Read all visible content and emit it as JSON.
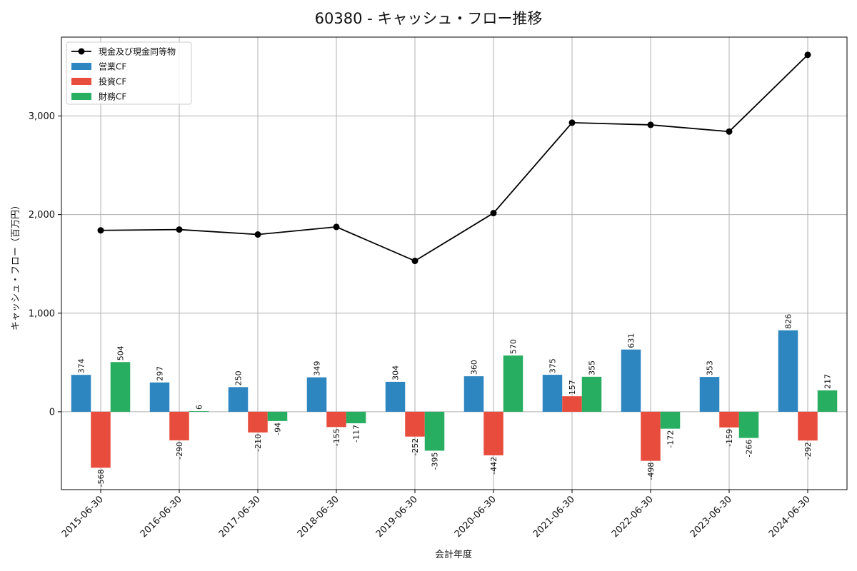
{
  "chart_data": {
    "type": "bar",
    "title": "60380 - キャッシュ・フロー推移",
    "xlabel": "会計年度",
    "ylabel": "キャッシュ・フロー（百万円）",
    "categories": [
      "2015-06-30",
      "2016-06-30",
      "2017-06-30",
      "2018-06-30",
      "2019-06-30",
      "2020-06-30",
      "2021-06-30",
      "2022-06-30",
      "2023-06-30",
      "2024-06-30"
    ],
    "ylim": [
      -790,
      3800
    ],
    "yticks": [
      0,
      1000,
      2000,
      3000
    ],
    "ytick_labels": [
      "0",
      "1,000",
      "2,000",
      "3,000"
    ],
    "grid": true,
    "legend_position": "top-left",
    "series": [
      {
        "name": "営業CF",
        "kind": "bar",
        "color": "#2e86c1",
        "values": [
          374,
          297,
          250,
          349,
          304,
          360,
          375,
          631,
          353,
          826
        ],
        "labels": [
          "374",
          "297",
          "250",
          "349",
          "304",
          "360",
          "375",
          "631",
          "353",
          "826"
        ]
      },
      {
        "name": "投資CF",
        "kind": "bar",
        "color": "#e74c3c",
        "values": [
          -568,
          -290,
          -210,
          -155,
          -252,
          -442,
          157,
          -498,
          -159,
          -292
        ],
        "labels": [
          "-568",
          "-290",
          "-210",
          "-155",
          "-252",
          "-442",
          "157",
          "-498",
          "-159",
          "-292"
        ]
      },
      {
        "name": "財務CF",
        "kind": "bar",
        "color": "#27ae60",
        "values": [
          504,
          6,
          -94,
          -117,
          -395,
          570,
          355,
          -172,
          -266,
          217
        ],
        "labels": [
          "504",
          "6",
          "-94",
          "-117",
          "-395",
          "570",
          "355",
          "-172",
          "-266",
          "217"
        ]
      },
      {
        "name": "現金及び現金同等物",
        "kind": "line",
        "color": "#000000",
        "values": [
          1840,
          1848,
          1798,
          1875,
          1530,
          2015,
          2932,
          2910,
          2842,
          3620
        ]
      }
    ]
  }
}
